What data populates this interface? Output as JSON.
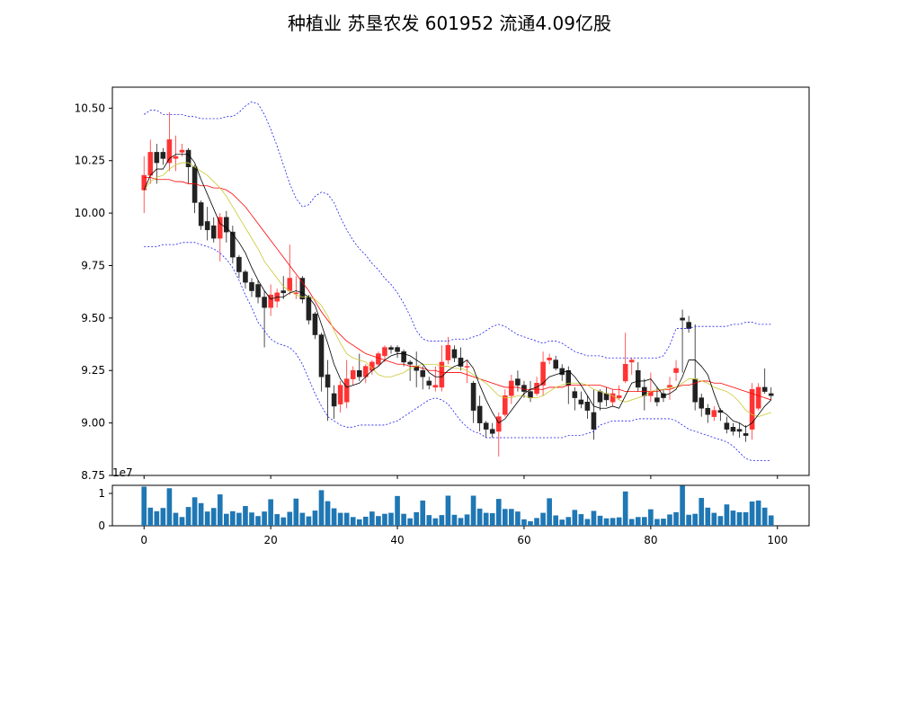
{
  "title": "种植业 苏垦农发 601952 流通4.09亿股",
  "colors": {
    "up": "#ff3333",
    "down": "#222222",
    "ma5": "#000000",
    "ma10": "#c8c832",
    "ma20": "#ff0000",
    "boll": "#1e1ef0",
    "volume": "#1f77b4"
  },
  "chart_data": [
    {
      "type": "candlestick",
      "title": "种植业 苏垦农发 601952 流通4.09亿股",
      "x": [
        0,
        1,
        2,
        3,
        4,
        5,
        6,
        7,
        8,
        9,
        10,
        11,
        12,
        13,
        14,
        15,
        16,
        17,
        18,
        19,
        20,
        21,
        22,
        23,
        24,
        25,
        26,
        27,
        28,
        29,
        30,
        31,
        32,
        33,
        34,
        35,
        36,
        37,
        38,
        39,
        40,
        41,
        42,
        43,
        44,
        45,
        46,
        47,
        48,
        49,
        50,
        51,
        52,
        53,
        54,
        55,
        56,
        57,
        58,
        59,
        60,
        61,
        62,
        63,
        64,
        65,
        66,
        67,
        68,
        69,
        70,
        71,
        72,
        73,
        74,
        75,
        76,
        77,
        78,
        79,
        80,
        81,
        82,
        83,
        84,
        85,
        86,
        87,
        88,
        89,
        90,
        91,
        92,
        93,
        94,
        95,
        96,
        97,
        98,
        99
      ],
      "open": [
        10.11,
        10.18,
        10.29,
        10.29,
        10.24,
        10.26,
        10.29,
        10.3,
        10.22,
        10.05,
        9.96,
        9.94,
        9.88,
        9.98,
        9.91,
        9.79,
        9.72,
        9.67,
        9.66,
        9.6,
        9.55,
        9.58,
        9.63,
        9.63,
        9.62,
        9.69,
        9.6,
        9.52,
        9.42,
        9.23,
        9.14,
        9.09,
        9.1,
        9.21,
        9.25,
        9.22,
        9.25,
        9.28,
        9.32,
        9.36,
        9.36,
        9.34,
        9.29,
        9.27,
        9.25,
        9.2,
        9.17,
        9.17,
        9.3,
        9.35,
        9.31,
        9.27,
        9.19,
        9.08,
        9.0,
        8.97,
        8.96,
        9.04,
        9.13,
        9.21,
        9.18,
        9.15,
        9.14,
        9.18,
        9.3,
        9.3,
        9.26,
        9.25,
        9.15,
        9.11,
        9.1,
        9.05,
        9.15,
        9.14,
        9.1,
        9.12,
        9.2,
        9.29,
        9.25,
        9.17,
        9.13,
        9.12,
        9.14,
        9.17,
        9.24,
        9.5,
        9.48,
        9.21,
        9.12,
        9.07,
        9.03,
        9.06,
        9.0,
        8.98,
        8.97,
        8.95,
        8.97,
        9.07,
        9.17,
        9.14
      ],
      "close": [
        10.18,
        10.29,
        10.24,
        10.26,
        10.35,
        10.27,
        10.3,
        10.22,
        10.05,
        9.94,
        9.92,
        9.88,
        9.98,
        9.91,
        9.79,
        9.72,
        9.67,
        9.63,
        9.6,
        9.55,
        9.61,
        9.62,
        9.62,
        9.69,
        9.62,
        9.59,
        9.49,
        9.42,
        9.22,
        9.17,
        9.08,
        9.18,
        9.21,
        9.25,
        9.22,
        9.27,
        9.29,
        9.33,
        9.36,
        9.35,
        9.34,
        9.29,
        9.28,
        9.25,
        9.22,
        9.18,
        9.18,
        9.29,
        9.37,
        9.31,
        9.27,
        9.27,
        9.06,
        9.0,
        8.97,
        8.95,
        9.03,
        9.13,
        9.2,
        9.18,
        9.15,
        9.12,
        9.19,
        9.29,
        9.31,
        9.26,
        9.23,
        9.18,
        9.12,
        9.09,
        9.06,
        8.97,
        9.1,
        9.11,
        9.14,
        9.13,
        9.28,
        9.3,
        9.17,
        9.13,
        9.15,
        9.1,
        9.12,
        9.18,
        9.26,
        9.49,
        9.45,
        9.1,
        9.07,
        9.04,
        9.06,
        9.05,
        8.97,
        8.96,
        8.96,
        8.94,
        9.16,
        9.17,
        9.15,
        9.13
      ],
      "high": [
        10.27,
        10.35,
        10.33,
        10.31,
        10.48,
        10.37,
        10.33,
        10.31,
        10.23,
        10.06,
        10.03,
        9.98,
        10.0,
        10.01,
        9.94,
        9.8,
        9.73,
        9.69,
        9.68,
        9.63,
        9.66,
        9.64,
        9.7,
        9.85,
        9.7,
        9.7,
        9.61,
        9.53,
        9.43,
        9.3,
        9.18,
        9.2,
        9.3,
        9.27,
        9.33,
        9.28,
        9.3,
        9.34,
        9.37,
        9.37,
        9.37,
        9.35,
        9.3,
        9.34,
        9.27,
        9.22,
        9.27,
        9.37,
        9.41,
        9.37,
        9.36,
        9.3,
        9.2,
        9.13,
        9.01,
        9.0,
        9.05,
        9.16,
        9.23,
        9.25,
        9.2,
        9.2,
        9.22,
        9.34,
        9.33,
        9.32,
        9.28,
        9.27,
        9.17,
        9.15,
        9.13,
        9.16,
        9.16,
        9.17,
        9.16,
        9.18,
        9.43,
        9.31,
        9.29,
        9.21,
        9.24,
        9.17,
        9.16,
        9.22,
        9.3,
        9.54,
        9.51,
        9.47,
        9.14,
        9.09,
        9.08,
        9.07,
        9.03,
        9.0,
        9.0,
        8.99,
        9.19,
        9.19,
        9.26,
        9.17
      ],
      "low": [
        10.0,
        10.14,
        10.14,
        10.23,
        10.2,
        10.2,
        10.27,
        10.14,
        10.0,
        9.92,
        9.87,
        9.86,
        9.77,
        9.86,
        9.76,
        9.69,
        9.64,
        9.6,
        9.57,
        9.36,
        9.51,
        9.55,
        9.59,
        9.61,
        9.59,
        9.57,
        9.47,
        9.4,
        9.15,
        9.01,
        9.02,
        9.05,
        9.07,
        9.18,
        9.2,
        9.19,
        9.23,
        9.27,
        9.29,
        9.33,
        9.31,
        9.27,
        9.2,
        9.17,
        9.16,
        9.16,
        9.15,
        9.15,
        9.28,
        9.29,
        9.25,
        9.19,
        9.0,
        8.96,
        8.93,
        8.93,
        8.84,
        9.03,
        9.09,
        9.15,
        9.12,
        9.1,
        9.13,
        9.13,
        9.28,
        9.25,
        9.2,
        9.09,
        9.06,
        9.07,
        9.02,
        8.92,
        9.06,
        9.08,
        9.08,
        9.11,
        9.19,
        9.23,
        9.15,
        9.06,
        9.1,
        9.08,
        9.1,
        9.11,
        9.2,
        9.24,
        9.43,
        9.06,
        9.03,
        9.0,
        9.01,
        9.01,
        8.95,
        8.94,
        8.93,
        8.91,
        8.92,
        9.06,
        9.14,
        9.11
      ],
      "ma5": [
        10.11,
        10.18,
        10.21,
        10.21,
        10.26,
        10.28,
        10.28,
        10.28,
        10.24,
        10.16,
        10.09,
        10.02,
        9.95,
        9.93,
        9.9,
        9.86,
        9.81,
        9.74,
        9.68,
        9.63,
        9.59,
        9.6,
        9.6,
        9.62,
        9.63,
        9.62,
        9.6,
        9.56,
        9.47,
        9.38,
        9.28,
        9.21,
        9.17,
        9.18,
        9.19,
        9.22,
        9.25,
        9.27,
        9.3,
        9.32,
        9.33,
        9.33,
        9.32,
        9.3,
        9.28,
        9.24,
        9.22,
        9.22,
        9.25,
        9.27,
        9.28,
        9.3,
        9.26,
        9.18,
        9.11,
        9.05,
        9.0,
        9.02,
        9.06,
        9.1,
        9.14,
        9.16,
        9.17,
        9.19,
        9.22,
        9.23,
        9.24,
        9.25,
        9.22,
        9.18,
        9.13,
        9.08,
        9.07,
        9.07,
        9.08,
        9.07,
        9.13,
        9.19,
        9.2,
        9.2,
        9.21,
        9.17,
        9.13,
        9.14,
        9.16,
        9.22,
        9.3,
        9.3,
        9.27,
        9.23,
        9.14,
        9.06,
        9.04,
        9.01,
        9.0,
        8.98,
        9.0,
        9.04,
        9.08,
        9.11
      ],
      "ma10": [
        10.11,
        10.15,
        10.17,
        10.18,
        10.21,
        10.23,
        10.24,
        10.24,
        10.22,
        10.2,
        10.18,
        10.15,
        10.12,
        10.08,
        10.03,
        9.98,
        9.93,
        9.88,
        9.83,
        9.77,
        9.73,
        9.69,
        9.65,
        9.63,
        9.61,
        9.6,
        9.6,
        9.59,
        9.56,
        9.51,
        9.44,
        9.38,
        9.33,
        9.31,
        9.3,
        9.29,
        9.26,
        9.23,
        9.22,
        9.22,
        9.23,
        9.24,
        9.26,
        9.27,
        9.28,
        9.28,
        9.28,
        9.27,
        9.27,
        9.26,
        9.26,
        9.25,
        9.23,
        9.21,
        9.19,
        9.16,
        9.13,
        9.12,
        9.12,
        9.13,
        9.13,
        9.12,
        9.12,
        9.13,
        9.15,
        9.17,
        9.18,
        9.19,
        9.19,
        9.19,
        9.18,
        9.16,
        9.15,
        9.14,
        9.13,
        9.11,
        9.1,
        9.11,
        9.12,
        9.13,
        9.15,
        9.16,
        9.16,
        9.17,
        9.17,
        9.19,
        9.21,
        9.21,
        9.2,
        9.19,
        9.17,
        9.16,
        9.15,
        9.13,
        9.1,
        9.06,
        9.04,
        9.03,
        9.04,
        9.05
      ],
      "ma20": [
        10.17,
        10.17,
        10.16,
        10.16,
        10.16,
        10.15,
        10.15,
        10.14,
        10.14,
        10.13,
        10.13,
        10.12,
        10.12,
        10.11,
        10.09,
        10.06,
        10.03,
        9.99,
        9.95,
        9.91,
        9.87,
        9.83,
        9.79,
        9.75,
        9.71,
        9.67,
        9.63,
        9.58,
        9.53,
        9.49,
        9.45,
        9.42,
        9.39,
        9.37,
        9.35,
        9.33,
        9.32,
        9.31,
        9.3,
        9.29,
        9.28,
        9.28,
        9.27,
        9.27,
        9.26,
        9.25,
        9.25,
        9.24,
        9.24,
        9.24,
        9.24,
        9.23,
        9.22,
        9.21,
        9.2,
        9.19,
        9.18,
        9.17,
        9.17,
        9.17,
        9.16,
        9.16,
        9.16,
        9.16,
        9.17,
        9.17,
        9.17,
        9.18,
        9.18,
        9.18,
        9.18,
        9.18,
        9.18,
        9.17,
        9.16,
        9.16,
        9.15,
        9.15,
        9.15,
        9.15,
        9.15,
        9.15,
        9.16,
        9.16,
        9.17,
        9.18,
        9.18,
        9.19,
        9.2,
        9.2,
        9.19,
        9.19,
        9.18,
        9.17,
        9.16,
        9.15,
        9.14,
        9.13,
        9.12,
        9.11
      ],
      "boll_up": [
        10.47,
        10.49,
        10.49,
        10.47,
        10.47,
        10.47,
        10.47,
        10.46,
        10.46,
        10.45,
        10.45,
        10.45,
        10.45,
        10.46,
        10.46,
        10.48,
        10.51,
        10.53,
        10.52,
        10.47,
        10.4,
        10.32,
        10.23,
        10.14,
        10.07,
        10.03,
        10.04,
        10.08,
        10.1,
        10.09,
        10.05,
        9.98,
        9.92,
        9.87,
        9.83,
        9.8,
        9.76,
        9.73,
        9.69,
        9.66,
        9.62,
        9.57,
        9.51,
        9.44,
        9.4,
        9.39,
        9.39,
        9.39,
        9.39,
        9.4,
        9.4,
        9.4,
        9.41,
        9.42,
        9.44,
        9.46,
        9.47,
        9.46,
        9.44,
        9.42,
        9.41,
        9.4,
        9.39,
        9.38,
        9.39,
        9.39,
        9.38,
        9.36,
        9.34,
        9.33,
        9.32,
        9.32,
        9.32,
        9.31,
        9.31,
        9.31,
        9.31,
        9.31,
        9.31,
        9.31,
        9.31,
        9.31,
        9.32,
        9.37,
        9.45,
        9.45,
        9.45,
        9.46,
        9.46,
        9.46,
        9.46,
        9.46,
        9.46,
        9.47,
        9.47,
        9.48,
        9.48,
        9.47,
        9.47,
        9.47
      ],
      "boll_dn": [
        9.84,
        9.84,
        9.84,
        9.85,
        9.85,
        9.85,
        9.86,
        9.86,
        9.86,
        9.85,
        9.84,
        9.83,
        9.81,
        9.78,
        9.74,
        9.68,
        9.61,
        9.55,
        9.48,
        9.44,
        9.4,
        9.38,
        9.37,
        9.36,
        9.33,
        9.28,
        9.21,
        9.14,
        9.08,
        9.03,
        9.01,
        8.99,
        8.98,
        8.98,
        8.99,
        8.99,
        8.99,
        8.99,
        8.99,
        9.0,
        9.01,
        9.03,
        9.05,
        9.07,
        9.09,
        9.11,
        9.12,
        9.11,
        9.09,
        9.05,
        9.01,
        8.98,
        8.96,
        8.95,
        8.93,
        8.93,
        8.93,
        8.93,
        8.93,
        8.93,
        8.93,
        8.93,
        8.93,
        8.93,
        8.93,
        8.93,
        8.93,
        8.94,
        8.94,
        8.94,
        8.95,
        8.96,
        8.99,
        9.0,
        9.01,
        9.01,
        9.01,
        9.01,
        9.02,
        9.02,
        9.02,
        9.02,
        9.02,
        9.02,
        9.01,
        8.99,
        8.97,
        8.96,
        8.95,
        8.94,
        8.93,
        8.92,
        8.91,
        8.89,
        8.86,
        8.83,
        8.82,
        8.82,
        8.82,
        8.82
      ],
      "ylim": [
        8.75,
        10.6
      ],
      "xlim": [
        -5,
        105
      ],
      "yticks": [
        "8.75",
        "9.00",
        "9.25",
        "9.50",
        "9.75",
        "10.00",
        "10.25",
        "10.50"
      ],
      "xlabel": "",
      "ylabel": ""
    },
    {
      "type": "bar",
      "x": [
        0,
        1,
        2,
        3,
        4,
        5,
        6,
        7,
        8,
        9,
        10,
        11,
        12,
        13,
        14,
        15,
        16,
        17,
        18,
        19,
        20,
        21,
        22,
        23,
        24,
        25,
        26,
        27,
        28,
        29,
        30,
        31,
        32,
        33,
        34,
        35,
        36,
        37,
        38,
        39,
        40,
        41,
        42,
        43,
        44,
        45,
        46,
        47,
        48,
        49,
        50,
        51,
        52,
        53,
        54,
        55,
        56,
        57,
        58,
        59,
        60,
        61,
        62,
        63,
        64,
        65,
        66,
        67,
        68,
        69,
        70,
        71,
        72,
        73,
        74,
        75,
        76,
        77,
        78,
        79,
        80,
        81,
        82,
        83,
        84,
        85,
        86,
        87,
        88,
        89,
        90,
        91,
        92,
        93,
        94,
        95,
        96,
        97,
        98,
        99
      ],
      "values": [
        1.21,
        0.56,
        0.45,
        0.55,
        1.16,
        0.4,
        0.27,
        0.58,
        0.88,
        0.7,
        0.44,
        0.55,
        0.97,
        0.37,
        0.45,
        0.4,
        0.61,
        0.41,
        0.3,
        0.44,
        0.82,
        0.36,
        0.26,
        0.43,
        0.84,
        0.4,
        0.29,
        0.47,
        1.1,
        0.76,
        0.54,
        0.4,
        0.4,
        0.27,
        0.2,
        0.28,
        0.44,
        0.3,
        0.37,
        0.4,
        0.92,
        0.37,
        0.23,
        0.42,
        0.78,
        0.33,
        0.23,
        0.33,
        0.93,
        0.34,
        0.24,
        0.35,
        0.93,
        0.53,
        0.4,
        0.39,
        0.83,
        0.52,
        0.52,
        0.44,
        0.2,
        0.14,
        0.24,
        0.4,
        0.85,
        0.32,
        0.19,
        0.27,
        0.49,
        0.36,
        0.21,
        0.46,
        0.31,
        0.23,
        0.24,
        0.26,
        1.06,
        0.21,
        0.27,
        0.27,
        0.51,
        0.21,
        0.22,
        0.35,
        0.42,
        1.24,
        0.34,
        0.37,
        0.86,
        0.56,
        0.4,
        0.3,
        0.66,
        0.47,
        0.42,
        0.42,
        0.75,
        0.78,
        0.56,
        0.32
      ],
      "ylim": [
        0,
        1.25
      ],
      "yticks": [
        "0",
        "1"
      ],
      "xticks": [
        "0",
        "20",
        "40",
        "60",
        "80",
        "100"
      ],
      "exponent_label": "1e7"
    }
  ]
}
